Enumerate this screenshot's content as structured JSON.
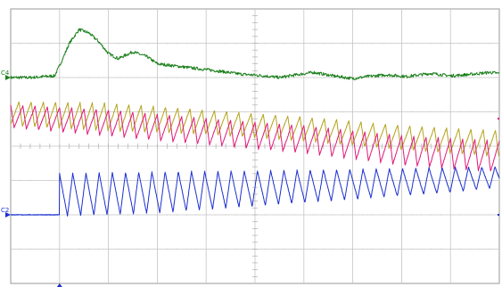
{
  "chart_data": {
    "type": "line",
    "title": "",
    "xlabel": "",
    "ylabel": "",
    "grid": true,
    "divisions": {
      "x": 10,
      "y": 8
    },
    "xlim": [
      0,
      10
    ],
    "ylim": [
      -4,
      4
    ],
    "trigger_time_div": 1.0,
    "series": [
      {
        "name": "C4",
        "color": "#1a7f1a",
        "marker_div": 2.0,
        "x": [
          0,
          0.4,
          0.9,
          1.05,
          1.2,
          1.4,
          1.6,
          1.8,
          2.0,
          2.2,
          2.5,
          2.8,
          3.0,
          3.3,
          3.7,
          4.2,
          4.7,
          5.2,
          5.5,
          5.8,
          6.2,
          6.6,
          7.0,
          7.3,
          7.7,
          8.1,
          8.6,
          9.0,
          9.4,
          9.8,
          10.0
        ],
        "y": [
          2.0,
          2.0,
          2.05,
          2.5,
          3.0,
          3.4,
          3.3,
          3.05,
          2.7,
          2.55,
          2.75,
          2.6,
          2.4,
          2.35,
          2.28,
          2.2,
          2.1,
          2.05,
          2.0,
          2.07,
          2.15,
          2.05,
          1.97,
          2.03,
          2.08,
          2.03,
          2.12,
          2.05,
          2.09,
          2.15,
          2.12
        ]
      },
      {
        "name": "",
        "color": "#b5a21a",
        "waveform": "sawtooth",
        "period_div": 0.25,
        "phase_div": 0.08,
        "x": [
          0,
          2,
          4,
          6,
          8,
          10
        ],
        "y_high": [
          1.3,
          1.25,
          1.05,
          0.85,
          0.6,
          0.45
        ],
        "y_low": [
          0.6,
          0.45,
          0.35,
          0.15,
          -0.1,
          -0.3
        ]
      },
      {
        "name": "",
        "color": "#e0197a",
        "waveform": "sawtooth",
        "period_div": 0.25,
        "phase_div": 0.0,
        "x": [
          0,
          2,
          4,
          6,
          8,
          10
        ],
        "y_high": [
          1.2,
          1.05,
          0.8,
          0.6,
          0.3,
          0.15
        ],
        "y_low": [
          0.55,
          0.3,
          0.05,
          -0.2,
          -0.55,
          -0.75
        ]
      },
      {
        "name": "C2",
        "color": "#1a2fcf",
        "marker_div": -2.0,
        "waveform": "sawtooth-step",
        "step_x": 1.0,
        "baseline": -2.0,
        "period_div": 0.27,
        "x": [
          1.0,
          3,
          5,
          7,
          9,
          10
        ],
        "y_high": [
          -0.8,
          -0.75,
          -0.72,
          -0.68,
          -0.62,
          -0.6
        ],
        "y_low": [
          -2.05,
          -1.95,
          -1.75,
          -1.55,
          -1.35,
          -1.2
        ]
      }
    ]
  }
}
